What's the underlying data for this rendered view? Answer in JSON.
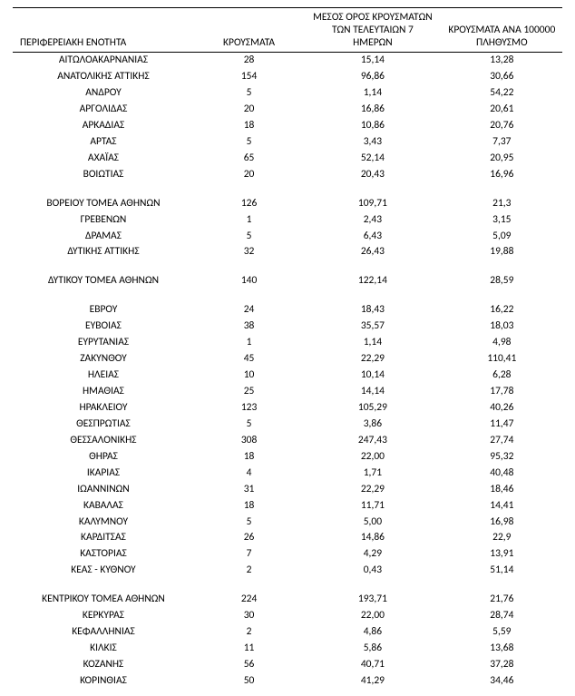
{
  "table": {
    "columns": [
      "ΠΕΡΙΦΕΡΕΙΑΚΗ ΕΝΟΤΗΤΑ",
      "ΚΡΟΥΣΜΑΤΑ",
      "ΜΕΣΟΣ ΟΡΟΣ ΚΡΟΥΣΜΑΤΩΝ ΤΩΝ ΤΕΛΕΥΤΑΙΩΝ 7 ΗΜΕΡΩΝ",
      "ΚΡΟΥΣΜΑΤΑ ΑΝΑ 100000 ΠΛΗΘΥΣΜΟ"
    ],
    "header_lines": {
      "col0": [
        "",
        "",
        "ΠΕΡΙΦΕΡΕΙΑΚΗ ΕΝΟΤΗΤΑ"
      ],
      "col1": [
        "",
        "",
        "ΚΡΟΥΣΜΑΤΑ"
      ],
      "col2": [
        "ΜΕΣΟΣ ΟΡΟΣ ΚΡΟΥΣΜΑΤΩΝ",
        "ΤΩΝ ΤΕΛΕΥΤΑΙΩΝ 7",
        "ΗΜΕΡΩΝ"
      ],
      "col3": [
        "",
        "ΚΡΟΥΣΜΑΤΑ ΑΝΑ 100000",
        "ΠΛΗΘΥΣΜΟ"
      ]
    },
    "groups": [
      {
        "rows": [
          [
            "ΑΙΤΩΛΟΑΚΑΡΝΑΝΙΑΣ",
            "28",
            "15,14",
            "13,28"
          ],
          [
            "ΑΝΑΤΟΛΙΚΗΣ ΑΤΤΙΚΗΣ",
            "154",
            "96,86",
            "30,66"
          ],
          [
            "ΑΝΔΡΟΥ",
            "5",
            "1,14",
            "54,22"
          ],
          [
            "ΑΡΓΟΛΙΔΑΣ",
            "20",
            "16,86",
            "20,61"
          ],
          [
            "ΑΡΚΑΔΙΑΣ",
            "18",
            "10,86",
            "20,76"
          ],
          [
            "ΑΡΤΑΣ",
            "5",
            "3,43",
            "7,37"
          ],
          [
            "ΑΧΑΪΑΣ",
            "65",
            "52,14",
            "20,95"
          ],
          [
            "ΒΟΙΩΤΙΑΣ",
            "20",
            "20,43",
            "16,96"
          ]
        ]
      },
      {
        "rows": [
          [
            "ΒΟΡΕΙΟΥ ΤΟΜΕΑ ΑΘΗΝΩΝ",
            "126",
            "109,71",
            "21,3"
          ],
          [
            "ΓΡΕΒΕΝΩΝ",
            "1",
            "2,43",
            "3,15"
          ],
          [
            "ΔΡΑΜΑΣ",
            "5",
            "6,43",
            "5,09"
          ],
          [
            "ΔΥΤΙΚΗΣ ΑΤΤΙΚΗΣ",
            "32",
            "26,43",
            "19,88"
          ]
        ]
      },
      {
        "rows": [
          [
            "ΔΥΤΙΚΟΥ ΤΟΜΕΑ ΑΘΗΝΩΝ",
            "140",
            "122,14",
            "28,59"
          ]
        ]
      },
      {
        "rows": [
          [
            "ΕΒΡΟΥ",
            "24",
            "18,43",
            "16,22"
          ],
          [
            "ΕΥΒΟΙΑΣ",
            "38",
            "35,57",
            "18,03"
          ],
          [
            "ΕΥΡΥΤΑΝΙΑΣ",
            "1",
            "1,14",
            "4,98"
          ],
          [
            "ΖΑΚΥΝΘΟΥ",
            "45",
            "22,29",
            "110,41"
          ],
          [
            "ΗΛΕΙΑΣ",
            "10",
            "10,14",
            "6,28"
          ],
          [
            "ΗΜΑΘΙΑΣ",
            "25",
            "14,14",
            "17,78"
          ],
          [
            "ΗΡΑΚΛΕΙΟΥ",
            "123",
            "105,29",
            "40,26"
          ],
          [
            "ΘΕΣΠΡΩΤΙΑΣ",
            "5",
            "3,86",
            "11,47"
          ],
          [
            "ΘΕΣΣΑΛΟΝΙΚΗΣ",
            "308",
            "247,43",
            "27,74"
          ],
          [
            "ΘΗΡΑΣ",
            "18",
            "22,00",
            "95,32"
          ],
          [
            "ΙΚΑΡΙΑΣ",
            "4",
            "1,71",
            "40,48"
          ],
          [
            "ΙΩΑΝΝΙΝΩΝ",
            "31",
            "22,29",
            "18,46"
          ],
          [
            "ΚΑΒΑΛΑΣ",
            "18",
            "11,71",
            "14,41"
          ],
          [
            "ΚΑΛΥΜΝΟΥ",
            "5",
            "5,00",
            "16,98"
          ],
          [
            "ΚΑΡΔΙΤΣΑΣ",
            "26",
            "14,86",
            "22,9"
          ],
          [
            "ΚΑΣΤΟΡΙΑΣ",
            "7",
            "4,29",
            "13,91"
          ],
          [
            "ΚΕΑΣ - ΚΥΘΝΟΥ",
            "2",
            "0,43",
            "51,14"
          ]
        ]
      },
      {
        "rows": [
          [
            "ΚΕΝΤΡΙΚΟΥ ΤΟΜΕΑ ΑΘΗΝΩΝ",
            "224",
            "193,71",
            "21,76"
          ],
          [
            "ΚΕΡΚΥΡΑΣ",
            "30",
            "22,00",
            "28,74"
          ],
          [
            "ΚΕΦΑΛΛΗΝΙΑΣ",
            "2",
            "4,86",
            "5,59"
          ],
          [
            "ΚΙΛΚΙΣ",
            "11",
            "5,86",
            "13,68"
          ],
          [
            "ΚΟΖΑΝΗΣ",
            "56",
            "40,71",
            "37,28"
          ],
          [
            "ΚΟΡΙΝΘΙΑΣ",
            "50",
            "41,29",
            "34,46"
          ]
        ]
      }
    ],
    "background_color": "#ffffff",
    "text_color": "#000000",
    "border_color": "#000000",
    "font_size": 11.5,
    "column_widths_pct": [
      33,
      20,
      25,
      22
    ],
    "column_alignments": [
      "center",
      "center",
      "center",
      "center"
    ]
  }
}
